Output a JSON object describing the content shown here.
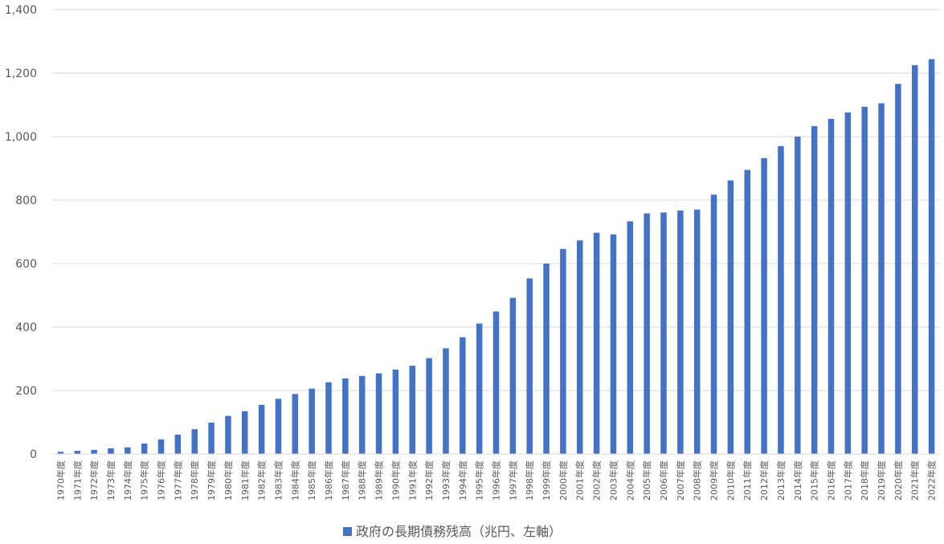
{
  "chart_data": {
    "type": "bar",
    "title": "",
    "xlabel": "",
    "ylabel": "",
    "ylim": [
      0,
      1400
    ],
    "yticks": [
      "0",
      "200",
      "400",
      "600",
      "800",
      "1,000",
      "1,200",
      "1,400"
    ],
    "ytick_values": [
      0,
      200,
      400,
      600,
      800,
      1000,
      1200,
      1400
    ],
    "grid": true,
    "legend_position": "bottom",
    "bar_color": "#4472C4",
    "categories": [
      "1970年度",
      "1971年度",
      "1972年度",
      "1973年度",
      "1974年度",
      "1975年度",
      "1976年度",
      "1977年度",
      "1978年度",
      "1979年度",
      "1980年度",
      "1981年度",
      "1982年度",
      "1983年度",
      "1984年度",
      "1985年度",
      "1986年度",
      "1987年度",
      "1988年度",
      "1989年度",
      "1990年度",
      "1991年度",
      "1992年度",
      "1993年度",
      "1994年度",
      "1995年度",
      "1996年度",
      "1997年度",
      "1998年度",
      "1999年度",
      "2000年度",
      "2001年度",
      "2002年度",
      "2003年度",
      "2004年度",
      "2005年度",
      "2006年度",
      "2007年度",
      "2008年度",
      "2009年度",
      "2010年度",
      "2011年度",
      "2012年度",
      "2013年度",
      "2014年度",
      "2015年度",
      "2016年度",
      "2017年度",
      "2018年度",
      "2019年度",
      "2020年度",
      "2021年度",
      "2022年度"
    ],
    "series": [
      {
        "name": "政府の長期債務残高（兆円、左軸）",
        "values": [
          7,
          10,
          13,
          18,
          21,
          33,
          46,
          61,
          78,
          99,
          120,
          135,
          155,
          174,
          189,
          206,
          226,
          238,
          246,
          254,
          266,
          278,
          302,
          333,
          368,
          411,
          449,
          492,
          553,
          600,
          646,
          673,
          697,
          692,
          733,
          758,
          761,
          767,
          770,
          817,
          862,
          895,
          932,
          970,
          1000,
          1033,
          1056,
          1076,
          1094,
          1105,
          1166,
          1225,
          1244
        ]
      }
    ]
  }
}
